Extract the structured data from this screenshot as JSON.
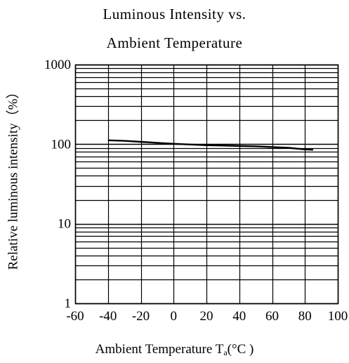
{
  "chart_data": {
    "type": "line",
    "title_line1": "Luminous Intensity vs.",
    "title_line2": "Ambient Temperature",
    "xlabel_prefix": "Ambient Temperature T",
    "xlabel_sub": "a",
    "xlabel_suffix": "(°C )",
    "ylabel": "Relative luminous intensity（%）",
    "yscale": "log",
    "xlim": [
      -60,
      100
    ],
    "ylim": [
      1,
      1000
    ],
    "x_ticks": [
      "-60",
      "-40",
      "-20",
      "0",
      "20",
      "40",
      "60",
      "80",
      "100"
    ],
    "y_ticks": [
      "1",
      "10",
      "100",
      "1000"
    ],
    "grid": true,
    "series": [
      {
        "x": [
          -40,
          -30,
          -20,
          -10,
          0,
          10,
          20,
          30,
          40,
          50,
          60,
          70,
          80,
          85
        ],
        "y": [
          112,
          110,
          107,
          104,
          101,
          99,
          97,
          96,
          95,
          94,
          92,
          90,
          86,
          85
        ]
      }
    ]
  }
}
